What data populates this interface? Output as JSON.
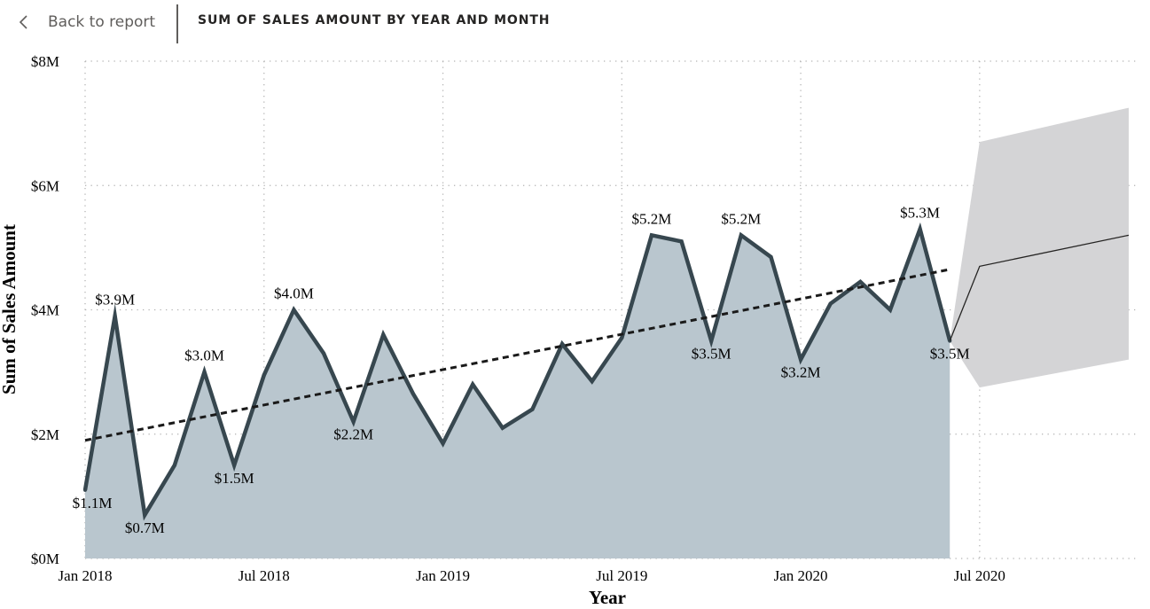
{
  "header": {
    "back_label": "Back to report",
    "title": "SUM OF SALES AMOUNT BY YEAR AND MONTH",
    "back_icon": "chevron-left-icon"
  },
  "colors": {
    "line": "#37474f",
    "area": "#b9c6ce",
    "forecast_band": "#d4d4d6",
    "forecast_line": "#252423",
    "trend": "#1a1a1a",
    "grid": "#b3b3b3"
  },
  "chart_data": {
    "type": "area",
    "xlabel": "Year",
    "ylabel": "Sum of Sales Amount",
    "ylim": [
      0,
      8
    ],
    "y_unit": "$M",
    "y_ticks": [
      "$0M",
      "$2M",
      "$4M",
      "$6M",
      "$8M"
    ],
    "x_ticks": [
      "Jan 2018",
      "Jul 2018",
      "Jan 2019",
      "Jul 2019",
      "Jan 2020",
      "Jul 2020"
    ],
    "grid": true,
    "series": [
      {
        "x": [
          "2018-01",
          "2018-02",
          "2018-03",
          "2018-04",
          "2018-05",
          "2018-06",
          "2018-07",
          "2018-08",
          "2018-09",
          "2018-10",
          "2018-11",
          "2018-12",
          "2019-01",
          "2019-02",
          "2019-03",
          "2019-04",
          "2019-05",
          "2019-06",
          "2019-07",
          "2019-08",
          "2019-09",
          "2019-10",
          "2019-11",
          "2019-12",
          "2020-01",
          "2020-02",
          "2020-03",
          "2020-04",
          "2020-05",
          "2020-06"
        ],
        "values": [
          1.1,
          3.9,
          0.7,
          1.5,
          3.0,
          1.5,
          2.95,
          4.0,
          3.3,
          2.2,
          3.6,
          2.65,
          1.85,
          2.8,
          2.1,
          2.4,
          3.45,
          2.85,
          3.55,
          5.2,
          5.1,
          3.5,
          5.2,
          4.85,
          3.2,
          4.1,
          4.45,
          4.0,
          5.3,
          3.5
        ]
      }
    ],
    "data_labels": [
      {
        "x": "2018-01",
        "value": 1.1,
        "text": "$1.1M"
      },
      {
        "x": "2018-02",
        "value": 3.9,
        "text": "$3.9M"
      },
      {
        "x": "2018-03",
        "value": 0.7,
        "text": "$0.7M"
      },
      {
        "x": "2018-05",
        "value": 3.0,
        "text": "$3.0M"
      },
      {
        "x": "2018-06",
        "value": 1.5,
        "text": "$1.5M"
      },
      {
        "x": "2018-08",
        "value": 4.0,
        "text": "$4.0M"
      },
      {
        "x": "2018-10",
        "value": 2.2,
        "text": "$2.2M"
      },
      {
        "x": "2019-08",
        "value": 5.2,
        "text": "$5.2M"
      },
      {
        "x": "2019-10",
        "value": 3.5,
        "text": "$3.5M"
      },
      {
        "x": "2019-11",
        "value": 5.2,
        "text": "$5.2M"
      },
      {
        "x": "2020-01",
        "value": 3.2,
        "text": "$3.2M"
      },
      {
        "x": "2020-05",
        "value": 5.3,
        "text": "$5.3M"
      },
      {
        "x": "2020-06",
        "value": 3.5,
        "text": "$3.5M"
      }
    ],
    "trend_line": {
      "x": [
        "2018-01",
        "2020-06"
      ],
      "values": [
        1.9,
        4.65
      ]
    },
    "forecast": {
      "x": [
        "2020-06",
        "2020-07",
        "2020-12"
      ],
      "values": [
        3.5,
        4.7,
        5.2
      ],
      "lower": [
        3.5,
        2.75,
        3.2
      ],
      "upper": [
        3.5,
        6.7,
        7.25
      ]
    }
  }
}
